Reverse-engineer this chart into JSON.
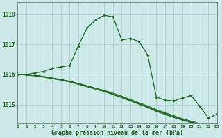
{
  "background_color": "#cce8e8",
  "grid_color": "#aacccc",
  "line_color": "#1a6b1a",
  "xlabel": "Graphe pression niveau de la mer (hPa)",
  "xlim": [
    0,
    23
  ],
  "ylim": [
    1014.4,
    1018.4
  ],
  "yticks": [
    1015,
    1016,
    1017,
    1018
  ],
  "xticks": [
    0,
    1,
    2,
    3,
    4,
    5,
    6,
    7,
    8,
    9,
    10,
    11,
    12,
    13,
    14,
    15,
    16,
    17,
    18,
    19,
    20,
    21,
    22,
    23
  ],
  "straight_lines": [
    [
      1016.0,
      1016.0,
      1015.97,
      1015.93,
      1015.88,
      1015.83,
      1015.77,
      1015.7,
      1015.62,
      1015.54,
      1015.45,
      1015.35,
      1015.25,
      1015.14,
      1015.03,
      1014.92,
      1014.8,
      1014.7,
      1014.6,
      1014.5,
      1014.42,
      1014.35,
      1014.3,
      1014.25
    ],
    [
      1016.0,
      1016.0,
      1015.97,
      1015.93,
      1015.88,
      1015.83,
      1015.77,
      1015.7,
      1015.62,
      1015.54,
      1015.45,
      1015.35,
      1015.25,
      1015.14,
      1015.03,
      1014.92,
      1014.8,
      1014.7,
      1014.6,
      1014.5,
      1014.42,
      1014.35,
      1014.3,
      1014.25
    ],
    [
      1016.0,
      1016.0,
      1015.97,
      1015.93,
      1015.88,
      1015.83,
      1015.77,
      1015.7,
      1015.62,
      1015.54,
      1015.47,
      1015.38,
      1015.28,
      1015.17,
      1015.06,
      1014.95,
      1014.83,
      1014.73,
      1014.63,
      1014.53,
      1014.45,
      1014.37,
      1014.32,
      1014.27
    ],
    [
      1016.0,
      1015.98,
      1015.95,
      1015.91,
      1015.86,
      1015.81,
      1015.75,
      1015.67,
      1015.59,
      1015.51,
      1015.43,
      1015.33,
      1015.23,
      1015.12,
      1015.01,
      1014.9,
      1014.77,
      1014.67,
      1014.57,
      1014.48,
      1014.4,
      1014.32,
      1014.27,
      1014.22
    ]
  ],
  "main_line": [
    1016.0,
    1016.0,
    1016.05,
    1016.1,
    1016.2,
    1016.25,
    1016.3,
    1016.95,
    1017.55,
    1017.82,
    1017.97,
    1017.92,
    1017.15,
    1017.2,
    1017.1,
    1016.65,
    1015.25,
    1015.15,
    1015.12,
    1015.22,
    1015.3,
    1014.95,
    1014.55,
    1014.68
  ]
}
